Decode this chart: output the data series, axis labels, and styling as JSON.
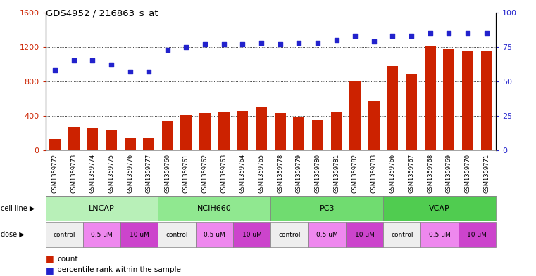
{
  "title": "GDS4952 / 216863_s_at",
  "samples": [
    "GSM1359772",
    "GSM1359773",
    "GSM1359774",
    "GSM1359775",
    "GSM1359776",
    "GSM1359777",
    "GSM1359760",
    "GSM1359761",
    "GSM1359762",
    "GSM1359763",
    "GSM1359764",
    "GSM1359765",
    "GSM1359778",
    "GSM1359779",
    "GSM1359780",
    "GSM1359781",
    "GSM1359782",
    "GSM1359783",
    "GSM1359766",
    "GSM1359767",
    "GSM1359768",
    "GSM1359769",
    "GSM1359770",
    "GSM1359771"
  ],
  "counts": [
    130,
    270,
    260,
    240,
    145,
    145,
    340,
    410,
    435,
    450,
    460,
    500,
    430,
    390,
    350,
    450,
    810,
    575,
    980,
    890,
    1210,
    1170,
    1150,
    1160
  ],
  "percentile_ranks": [
    58,
    65,
    65,
    62,
    57,
    57,
    73,
    75,
    77,
    77,
    77,
    78,
    77,
    78,
    78,
    80,
    83,
    79,
    83,
    83,
    85,
    85,
    85,
    85
  ],
  "cell_lines": [
    {
      "name": "LNCAP",
      "start": 0,
      "end": 6,
      "color": "#b8f0b8"
    },
    {
      "name": "NCIH660",
      "start": 6,
      "end": 12,
      "color": "#90e890"
    },
    {
      "name": "PC3",
      "start": 12,
      "end": 18,
      "color": "#70dc70"
    },
    {
      "name": "VCAP",
      "start": 18,
      "end": 24,
      "color": "#50cc50"
    }
  ],
  "doses": [
    {
      "label": "control",
      "start": 0,
      "end": 2,
      "color": "#eeeeee"
    },
    {
      "label": "0.5 uM",
      "start": 2,
      "end": 4,
      "color": "#ee88ee"
    },
    {
      "label": "10 uM",
      "start": 4,
      "end": 6,
      "color": "#cc44cc"
    },
    {
      "label": "control",
      "start": 6,
      "end": 8,
      "color": "#eeeeee"
    },
    {
      "label": "0.5 uM",
      "start": 8,
      "end": 10,
      "color": "#ee88ee"
    },
    {
      "label": "10 uM",
      "start": 10,
      "end": 12,
      "color": "#cc44cc"
    },
    {
      "label": "control",
      "start": 12,
      "end": 14,
      "color": "#eeeeee"
    },
    {
      "label": "0.5 uM",
      "start": 14,
      "end": 16,
      "color": "#ee88ee"
    },
    {
      "label": "10 uM",
      "start": 16,
      "end": 18,
      "color": "#cc44cc"
    },
    {
      "label": "control",
      "start": 18,
      "end": 20,
      "color": "#eeeeee"
    },
    {
      "label": "0.5 uM",
      "start": 20,
      "end": 22,
      "color": "#ee88ee"
    },
    {
      "label": "10 uM",
      "start": 22,
      "end": 24,
      "color": "#cc44cc"
    }
  ],
  "bar_color": "#cc2200",
  "dot_color": "#2222cc",
  "ylim_left": [
    0,
    1600
  ],
  "ylim_right": [
    0,
    100
  ],
  "yticks_left": [
    0,
    400,
    800,
    1200,
    1600
  ],
  "yticks_right": [
    0,
    25,
    50,
    75,
    100
  ],
  "grid_values": [
    400,
    800,
    1200
  ],
  "bg_color": "#ffffff",
  "tick_color_left": "#cc2200",
  "tick_color_right": "#2222cc",
  "xticklabel_bg": "#cccccc"
}
